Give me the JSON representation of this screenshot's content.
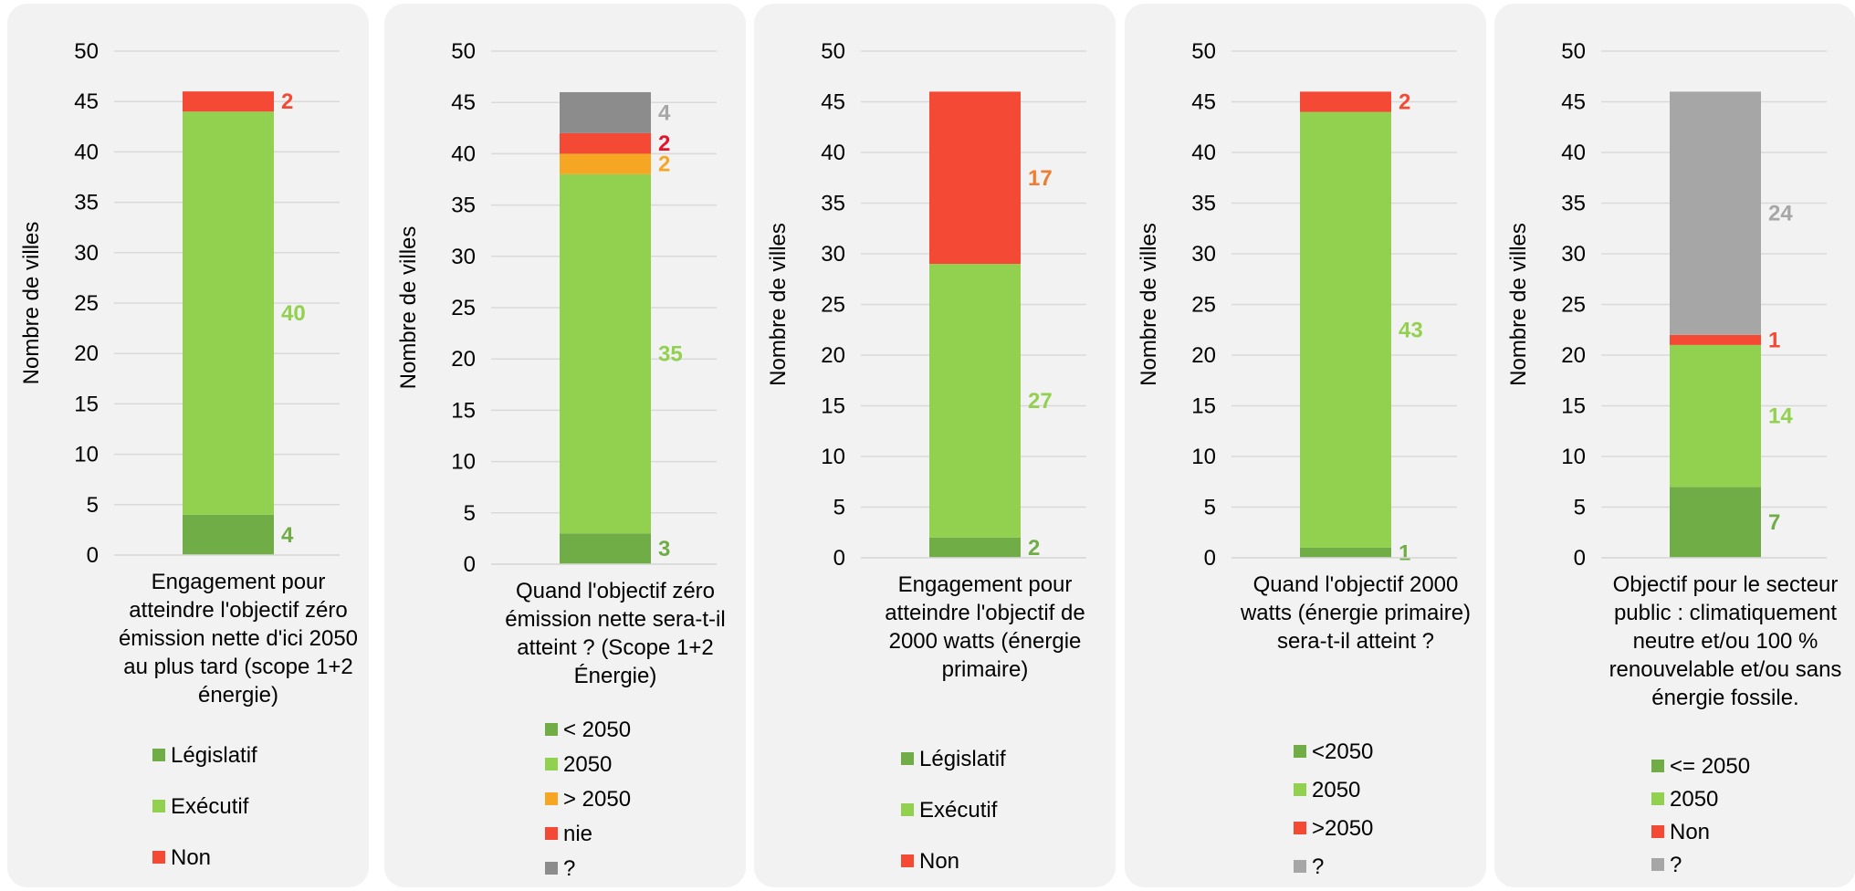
{
  "chart_data": [
    {
      "type": "bar",
      "stacked": true,
      "category": "Engagement pour atteindre l'objectif zéro émission nette d'ici 2050 au plus tard (scope 1+2 énergie)",
      "ylabel": "Nombre de villes",
      "ylim": [
        0,
        50
      ],
      "yticks": [
        0,
        5,
        10,
        15,
        20,
        25,
        30,
        35,
        40,
        45,
        50
      ],
      "legend_position": "bottom",
      "series": [
        {
          "name": "Législatif",
          "value": 4,
          "color": "#70ad47",
          "label_color": "#70ad47"
        },
        {
          "name": "Exécutif",
          "value": 40,
          "color": "#92d050",
          "label_color": "#92d050"
        },
        {
          "name": "Non",
          "value": 2,
          "color": "#f44a35",
          "label_color": "#f44a35"
        }
      ]
    },
    {
      "type": "bar",
      "stacked": true,
      "category": "Quand l'objectif zéro émission nette sera-t-il atteint ? (Scope 1+2 Énergie)",
      "ylabel": "Nombre de villes",
      "ylim": [
        0,
        50
      ],
      "yticks": [
        0,
        5,
        10,
        15,
        20,
        25,
        30,
        35,
        40,
        45,
        50
      ],
      "legend_position": "bottom",
      "series": [
        {
          "name": "< 2050",
          "value": 3,
          "color": "#70ad47",
          "label_color": "#70ad47"
        },
        {
          "name": "2050",
          "value": 35,
          "color": "#92d050",
          "label_color": "#92d050"
        },
        {
          "name": "> 2050",
          "value": 2,
          "color": "#f5a623",
          "label_color": "#f5a623"
        },
        {
          "name": "nie",
          "value": 2,
          "color": "#f44a35",
          "label_color": "#e8102a"
        },
        {
          "name": "?",
          "value": 4,
          "color": "#8c8c8c",
          "label_color": "#a6a6a6"
        }
      ]
    },
    {
      "type": "bar",
      "stacked": true,
      "category": "Engagement pour atteindre l'objectif de 2000 watts (énergie primaire)",
      "ylabel": "Nombre de villes",
      "ylim": [
        0,
        50
      ],
      "yticks": [
        0,
        5,
        10,
        15,
        20,
        25,
        30,
        35,
        40,
        45,
        50
      ],
      "legend_position": "bottom",
      "series": [
        {
          "name": "Législatif",
          "value": 2,
          "color": "#70ad47",
          "label_color": "#70ad47"
        },
        {
          "name": "Exécutif",
          "value": 27,
          "color": "#92d050",
          "label_color": "#92d050"
        },
        {
          "name": "Non",
          "value": 17,
          "color": "#f44a35",
          "label_color": "#ed7d31"
        }
      ]
    },
    {
      "type": "bar",
      "stacked": true,
      "category": "Quand l'objectif 2000 watts (énergie primaire) sera-t-il atteint ?",
      "ylabel": "Nombre de villes",
      "ylim": [
        0,
        50
      ],
      "yticks": [
        0,
        5,
        10,
        15,
        20,
        25,
        30,
        35,
        40,
        45,
        50
      ],
      "legend_position": "bottom",
      "series": [
        {
          "name": "<2050",
          "value": 1,
          "color": "#70ad47",
          "label_color": "#70ad47"
        },
        {
          "name": "2050",
          "value": 43,
          "color": "#92d050",
          "label_color": "#92d050"
        },
        {
          "name": ">2050",
          "value": 2,
          "color": "#f44a35",
          "label_color": "#f44a35"
        },
        {
          "name": "?",
          "value": 0,
          "color": "#a6a6a6",
          "label_color": "#a6a6a6",
          "hide_label": true
        }
      ]
    },
    {
      "type": "bar",
      "stacked": true,
      "category": "Objectif pour le secteur public : climatiquement neutre et/ou 100 % renouvelable et/ou sans énergie fossile.",
      "ylabel": "Nombre de villes",
      "ylim": [
        0,
        50
      ],
      "yticks": [
        0,
        5,
        10,
        15,
        20,
        25,
        30,
        35,
        40,
        45,
        50
      ],
      "legend_position": "bottom",
      "series": [
        {
          "name": "<= 2050",
          "value": 7,
          "color": "#70ad47",
          "label_color": "#70ad47"
        },
        {
          "name": "2050",
          "value": 14,
          "color": "#92d050",
          "label_color": "#92d050"
        },
        {
          "name": "Non",
          "value": 1,
          "color": "#f44a35",
          "label_color": "#f44a35"
        },
        {
          "name": "?",
          "value": 24,
          "color": "#a6a6a6",
          "label_color": "#a6a6a6"
        }
      ]
    }
  ]
}
